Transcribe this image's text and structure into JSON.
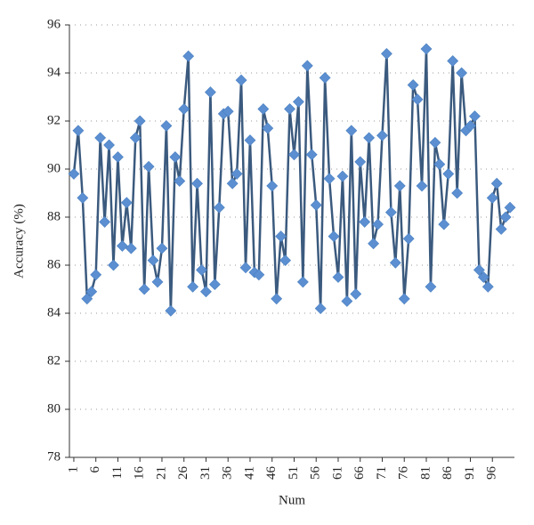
{
  "chart_data": {
    "type": "line",
    "xlabel": "Num",
    "ylabel": "Accuracy (%)",
    "x": [
      1,
      2,
      3,
      4,
      5,
      6,
      7,
      8,
      9,
      10,
      11,
      12,
      13,
      14,
      15,
      16,
      17,
      18,
      19,
      20,
      21,
      22,
      23,
      24,
      25,
      26,
      27,
      28,
      29,
      30,
      31,
      32,
      33,
      34,
      35,
      36,
      37,
      38,
      39,
      40,
      41,
      42,
      43,
      44,
      45,
      46,
      47,
      48,
      49,
      50,
      51,
      52,
      53,
      54,
      55,
      56,
      57,
      58,
      59,
      60,
      61,
      62,
      63,
      64,
      65,
      66,
      67,
      68,
      69,
      70,
      71,
      72,
      73,
      74,
      75,
      76,
      77,
      78,
      79,
      80,
      81,
      82,
      83,
      84,
      85,
      86,
      87,
      88,
      89,
      90,
      91,
      92,
      93,
      94,
      95,
      96,
      97,
      98,
      99,
      100
    ],
    "values": [
      89.8,
      91.6,
      88.8,
      84.6,
      84.9,
      85.6,
      91.3,
      87.8,
      91.0,
      86.0,
      90.5,
      86.8,
      88.6,
      86.7,
      91.3,
      92.0,
      85.0,
      90.1,
      86.2,
      85.3,
      86.7,
      91.8,
      84.1,
      90.5,
      89.5,
      92.5,
      94.7,
      85.1,
      89.4,
      85.8,
      84.9,
      93.2,
      85.2,
      88.4,
      92.3,
      92.4,
      89.4,
      89.8,
      93.7,
      85.9,
      91.2,
      85.7,
      85.6,
      92.5,
      91.7,
      89.3,
      84.6,
      87.2,
      86.2,
      92.5,
      90.6,
      92.8,
      85.3,
      94.3,
      90.6,
      88.5,
      84.2,
      93.8,
      89.6,
      87.2,
      85.5,
      89.7,
      84.5,
      91.6,
      84.8,
      90.3,
      87.8,
      91.3,
      86.9,
      87.7,
      91.4,
      94.8,
      88.2,
      86.1,
      89.3,
      84.6,
      87.1,
      93.5,
      92.9,
      89.3,
      95.0,
      85.1,
      91.1,
      90.2,
      87.7,
      89.8,
      94.5,
      89.0,
      94.0,
      91.6,
      91.8,
      92.2,
      85.8,
      85.5,
      85.1,
      88.8,
      89.4,
      87.5,
      88.0,
      88.4
    ],
    "line_color": "#3b5a7e",
    "marker_color": "#5b8fd1",
    "xlim": [
      0,
      101
    ],
    "xticks": [
      1,
      6,
      11,
      16,
      21,
      26,
      31,
      36,
      41,
      46,
      51,
      56,
      61,
      66,
      71,
      76,
      81,
      86,
      91,
      96
    ],
    "ylim": [
      78,
      96
    ],
    "yticks": [
      78,
      80,
      82,
      84,
      86,
      88,
      90,
      92,
      94,
      96
    ],
    "grid": true
  }
}
